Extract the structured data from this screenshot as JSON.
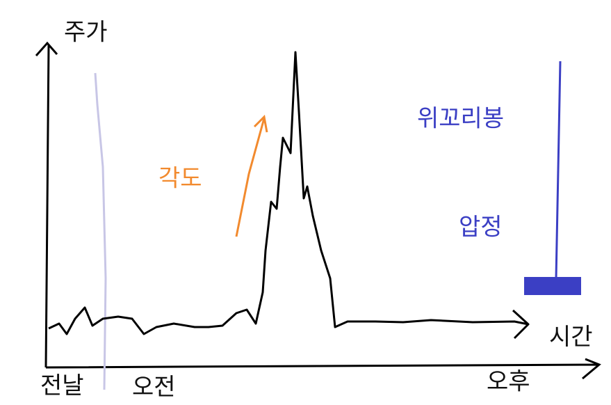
{
  "axes": {
    "y_label": "주가",
    "x_label": "시간"
  },
  "time_labels": [
    "전날",
    "오전",
    "오후"
  ],
  "annotations": {
    "angle": "각도",
    "upper_wick": "위꼬리봉",
    "thumbtack": "압정"
  }
}
